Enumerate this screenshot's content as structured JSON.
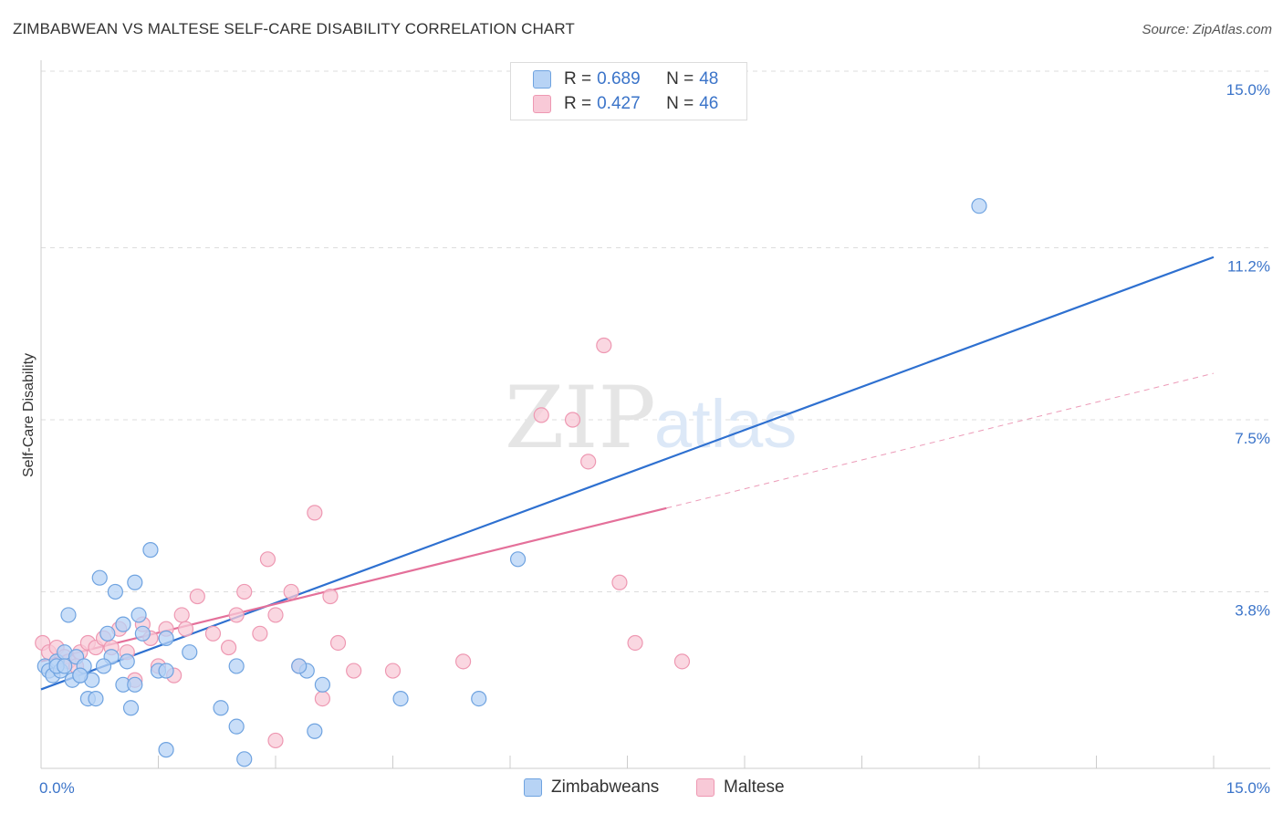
{
  "header": {
    "title": "ZIMBABWEAN VS MALTESE SELF-CARE DISABILITY CORRELATION CHART",
    "source": "Source: ZipAtlas.com"
  },
  "legend_top": {
    "rows": [
      {
        "r_label": "R =",
        "r_value": "0.689",
        "n_label": "N =",
        "n_value": "48"
      },
      {
        "r_label": "R =",
        "r_value": "0.427",
        "n_label": "N =",
        "n_value": "46"
      }
    ]
  },
  "legend_bottom": {
    "items": [
      {
        "label": "Zimbabweans"
      },
      {
        "label": "Maltese"
      }
    ]
  },
  "watermark": {
    "zip": "ZIP",
    "atlas": "atlas"
  },
  "colors": {
    "blue_fill": "#b7d3f5",
    "blue_stroke": "#6fa3e0",
    "blue_line": "#2e70d0",
    "pink_fill": "#f8c9d7",
    "pink_stroke": "#ee98b2",
    "pink_line": "#e4709a",
    "axis_text": "#3b74c9",
    "grid": "#dddddd"
  },
  "chart_data": {
    "type": "scatter",
    "title": "ZIMBABWEAN VS MALTESE SELF-CARE DISABILITY CORRELATION CHART",
    "xlabel": "",
    "ylabel": "Self-Care Disability",
    "xlim": [
      0,
      15
    ],
    "ylim": [
      0,
      15
    ],
    "x_tick_labels": [
      "0.0%",
      "15.0%"
    ],
    "y_ticks": [
      3.8,
      7.5,
      11.2,
      15.0
    ],
    "y_tick_labels": [
      "3.8%",
      "7.5%",
      "11.2%",
      "15.0%"
    ],
    "series": [
      {
        "name": "Zimbabweans",
        "r": 0.689,
        "n": 48,
        "trend": {
          "x": [
            0,
            15
          ],
          "y": [
            1.7,
            11.0
          ],
          "dashed_extension": false
        },
        "points": [
          {
            "x": 0.05,
            "y": 2.2
          },
          {
            "x": 0.1,
            "y": 2.1
          },
          {
            "x": 0.15,
            "y": 2.0
          },
          {
            "x": 0.2,
            "y": 2.3
          },
          {
            "x": 0.25,
            "y": 2.1
          },
          {
            "x": 0.3,
            "y": 2.5
          },
          {
            "x": 0.35,
            "y": 3.3
          },
          {
            "x": 0.4,
            "y": 1.9
          },
          {
            "x": 0.45,
            "y": 2.4
          },
          {
            "x": 0.5,
            "y": 2.0
          },
          {
            "x": 0.55,
            "y": 2.2
          },
          {
            "x": 0.6,
            "y": 1.5
          },
          {
            "x": 0.65,
            "y": 1.9
          },
          {
            "x": 0.7,
            "y": 1.5
          },
          {
            "x": 0.75,
            "y": 4.1
          },
          {
            "x": 0.85,
            "y": 2.9
          },
          {
            "x": 0.9,
            "y": 2.4
          },
          {
            "x": 0.95,
            "y": 3.8
          },
          {
            "x": 1.05,
            "y": 3.1
          },
          {
            "x": 1.1,
            "y": 2.3
          },
          {
            "x": 1.15,
            "y": 1.3
          },
          {
            "x": 1.2,
            "y": 4.0
          },
          {
            "x": 1.25,
            "y": 3.3
          },
          {
            "x": 1.3,
            "y": 2.9
          },
          {
            "x": 1.4,
            "y": 4.7
          },
          {
            "x": 1.5,
            "y": 2.1
          },
          {
            "x": 1.6,
            "y": 2.8
          },
          {
            "x": 1.05,
            "y": 1.8
          },
          {
            "x": 1.6,
            "y": 2.1
          },
          {
            "x": 2.3,
            "y": 1.3
          },
          {
            "x": 2.5,
            "y": 0.9
          },
          {
            "x": 1.6,
            "y": 0.4
          },
          {
            "x": 2.6,
            "y": 0.2
          },
          {
            "x": 1.9,
            "y": 2.5
          },
          {
            "x": 2.5,
            "y": 2.2
          },
          {
            "x": 3.4,
            "y": 2.1
          },
          {
            "x": 3.5,
            "y": 0.8
          },
          {
            "x": 3.6,
            "y": 1.8
          },
          {
            "x": 3.3,
            "y": 2.2
          },
          {
            "x": 5.6,
            "y": 1.5
          },
          {
            "x": 6.1,
            "y": 4.5
          },
          {
            "x": 4.6,
            "y": 1.5
          },
          {
            "x": 12.0,
            "y": 12.1
          },
          {
            "x": 0.2,
            "y": 2.2
          },
          {
            "x": 0.3,
            "y": 2.2
          },
          {
            "x": 0.5,
            "y": 2.0
          },
          {
            "x": 1.2,
            "y": 1.8
          },
          {
            "x": 0.8,
            "y": 2.2
          }
        ]
      },
      {
        "name": "Maltese",
        "r": 0.427,
        "n": 46,
        "trend": {
          "x": [
            0,
            8.0
          ],
          "y": [
            2.3,
            5.6
          ],
          "dashed_extension": {
            "x": [
              8.0,
              15
            ],
            "y": [
              5.6,
              8.5
            ]
          }
        },
        "points": [
          {
            "x": 0.02,
            "y": 2.7
          },
          {
            "x": 0.1,
            "y": 2.5
          },
          {
            "x": 0.2,
            "y": 2.6
          },
          {
            "x": 0.3,
            "y": 2.4
          },
          {
            "x": 0.35,
            "y": 2.3
          },
          {
            "x": 0.45,
            "y": 2.2
          },
          {
            "x": 0.5,
            "y": 2.5
          },
          {
            "x": 0.6,
            "y": 2.7
          },
          {
            "x": 0.7,
            "y": 2.6
          },
          {
            "x": 0.8,
            "y": 2.8
          },
          {
            "x": 0.9,
            "y": 2.6
          },
          {
            "x": 1.0,
            "y": 3.0
          },
          {
            "x": 1.1,
            "y": 2.5
          },
          {
            "x": 1.2,
            "y": 1.9
          },
          {
            "x": 1.3,
            "y": 3.1
          },
          {
            "x": 1.4,
            "y": 2.8
          },
          {
            "x": 1.5,
            "y": 2.2
          },
          {
            "x": 1.6,
            "y": 3.0
          },
          {
            "x": 1.8,
            "y": 3.3
          },
          {
            "x": 1.85,
            "y": 3.0
          },
          {
            "x": 2.0,
            "y": 3.7
          },
          {
            "x": 2.2,
            "y": 2.9
          },
          {
            "x": 2.4,
            "y": 2.6
          },
          {
            "x": 2.5,
            "y": 3.3
          },
          {
            "x": 2.6,
            "y": 3.8
          },
          {
            "x": 2.8,
            "y": 2.9
          },
          {
            "x": 2.9,
            "y": 4.5
          },
          {
            "x": 3.0,
            "y": 3.3
          },
          {
            "x": 3.2,
            "y": 3.8
          },
          {
            "x": 3.3,
            "y": 2.2
          },
          {
            "x": 3.5,
            "y": 5.5
          },
          {
            "x": 3.6,
            "y": 1.5
          },
          {
            "x": 3.7,
            "y": 3.7
          },
          {
            "x": 3.8,
            "y": 2.7
          },
          {
            "x": 4.0,
            "y": 2.1
          },
          {
            "x": 4.5,
            "y": 2.1
          },
          {
            "x": 5.4,
            "y": 2.3
          },
          {
            "x": 6.4,
            "y": 7.6
          },
          {
            "x": 6.8,
            "y": 7.5
          },
          {
            "x": 7.0,
            "y": 6.6
          },
          {
            "x": 7.4,
            "y": 4.0
          },
          {
            "x": 7.6,
            "y": 2.7
          },
          {
            "x": 8.2,
            "y": 2.3
          },
          {
            "x": 7.2,
            "y": 9.1
          },
          {
            "x": 1.7,
            "y": 2.0
          },
          {
            "x": 3.0,
            "y": 0.6
          }
        ]
      }
    ]
  }
}
